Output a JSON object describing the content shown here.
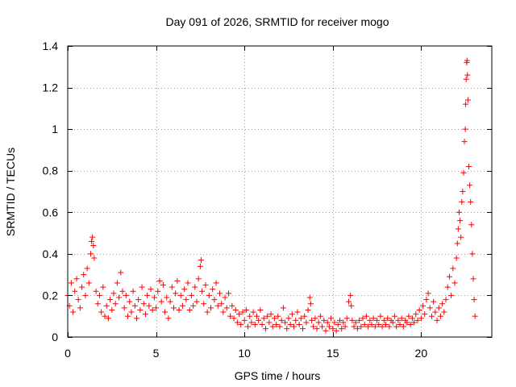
{
  "chart_data": {
    "type": "scatter",
    "title": "Day 091 of 2026, SRMTID for receiver mogo",
    "xlabel": "GPS time / hours",
    "ylabel": "SRMTID / TECUs",
    "xlim": [
      0,
      24
    ],
    "ylim": [
      0,
      1.4
    ],
    "x_ticks": [
      0,
      5,
      10,
      15,
      20
    ],
    "x_tick_labels": [
      "0",
      "5",
      "10",
      "15",
      "20"
    ],
    "y_ticks": [
      0,
      0.2,
      0.4,
      0.6,
      0.8,
      1.0,
      1.2,
      1.4
    ],
    "y_tick_labels": [
      "0",
      "0.2",
      "0.4",
      "0.6",
      "0.8",
      "1",
      "1.2",
      "1.4"
    ],
    "grid": true,
    "marker": "+",
    "marker_color": "#ff0000",
    "series": [
      {
        "name": "SRMTID",
        "points": [
          [
            0.0,
            0.2
          ],
          [
            0.1,
            0.15
          ],
          [
            0.2,
            0.26
          ],
          [
            0.3,
            0.12
          ],
          [
            0.4,
            0.22
          ],
          [
            0.5,
            0.28
          ],
          [
            0.6,
            0.18
          ],
          [
            0.7,
            0.14
          ],
          [
            0.8,
            0.24
          ],
          [
            0.9,
            0.3
          ],
          [
            1.0,
            0.2
          ],
          [
            1.1,
            0.33
          ],
          [
            1.2,
            0.26
          ],
          [
            1.3,
            0.4
          ],
          [
            1.35,
            0.46
          ],
          [
            1.4,
            0.48
          ],
          [
            1.45,
            0.44
          ],
          [
            1.5,
            0.38
          ],
          [
            1.6,
            0.22
          ],
          [
            1.7,
            0.16
          ],
          [
            1.8,
            0.2
          ],
          [
            1.9,
            0.12
          ],
          [
            2.0,
            0.24
          ],
          [
            2.1,
            0.1
          ],
          [
            2.2,
            0.15
          ],
          [
            2.3,
            0.09
          ],
          [
            2.4,
            0.18
          ],
          [
            2.5,
            0.13
          ],
          [
            2.6,
            0.21
          ],
          [
            2.7,
            0.16
          ],
          [
            2.8,
            0.26
          ],
          [
            2.9,
            0.19
          ],
          [
            3.0,
            0.31
          ],
          [
            3.1,
            0.22
          ],
          [
            3.2,
            0.14
          ],
          [
            3.3,
            0.2
          ],
          [
            3.4,
            0.1
          ],
          [
            3.5,
            0.17
          ],
          [
            3.6,
            0.12
          ],
          [
            3.7,
            0.22
          ],
          [
            3.8,
            0.15
          ],
          [
            3.9,
            0.09
          ],
          [
            4.0,
            0.18
          ],
          [
            4.1,
            0.13
          ],
          [
            4.2,
            0.24
          ],
          [
            4.3,
            0.16
          ],
          [
            4.4,
            0.11
          ],
          [
            4.5,
            0.2
          ],
          [
            4.6,
            0.15
          ],
          [
            4.7,
            0.23
          ],
          [
            4.8,
            0.13
          ],
          [
            4.9,
            0.19
          ],
          [
            5.0,
            0.14
          ],
          [
            5.1,
            0.22
          ],
          [
            5.2,
            0.27
          ],
          [
            5.3,
            0.17
          ],
          [
            5.4,
            0.25
          ],
          [
            5.5,
            0.12
          ],
          [
            5.6,
            0.19
          ],
          [
            5.7,
            0.09
          ],
          [
            5.8,
            0.17
          ],
          [
            5.9,
            0.24
          ],
          [
            6.0,
            0.14
          ],
          [
            6.1,
            0.21
          ],
          [
            6.2,
            0.27
          ],
          [
            6.3,
            0.13
          ],
          [
            6.4,
            0.2
          ],
          [
            6.5,
            0.15
          ],
          [
            6.6,
            0.23
          ],
          [
            6.7,
            0.18
          ],
          [
            6.8,
            0.26
          ],
          [
            6.9,
            0.13
          ],
          [
            7.0,
            0.2
          ],
          [
            7.1,
            0.15
          ],
          [
            7.2,
            0.24
          ],
          [
            7.3,
            0.17
          ],
          [
            7.4,
            0.28
          ],
          [
            7.5,
            0.34
          ],
          [
            7.55,
            0.37
          ],
          [
            7.6,
            0.22
          ],
          [
            7.7,
            0.16
          ],
          [
            7.8,
            0.25
          ],
          [
            7.9,
            0.12
          ],
          [
            8.0,
            0.2
          ],
          [
            8.1,
            0.14
          ],
          [
            8.2,
            0.23
          ],
          [
            8.3,
            0.18
          ],
          [
            8.4,
            0.26
          ],
          [
            8.5,
            0.15
          ],
          [
            8.6,
            0.21
          ],
          [
            8.7,
            0.16
          ],
          [
            8.8,
            0.12
          ],
          [
            8.9,
            0.19
          ],
          [
            9.0,
            0.14
          ],
          [
            9.1,
            0.21
          ],
          [
            9.2,
            0.1
          ],
          [
            9.3,
            0.15
          ],
          [
            9.4,
            0.09
          ],
          [
            9.5,
            0.13
          ],
          [
            9.6,
            0.07
          ],
          [
            9.7,
            0.11
          ],
          [
            9.8,
            0.06
          ],
          [
            9.9,
            0.12
          ],
          [
            10.0,
            0.08
          ],
          [
            10.1,
            0.13
          ],
          [
            10.2,
            0.05
          ],
          [
            10.3,
            0.1
          ],
          [
            10.4,
            0.07
          ],
          [
            10.5,
            0.12
          ],
          [
            10.6,
            0.06
          ],
          [
            10.7,
            0.1
          ],
          [
            10.8,
            0.08
          ],
          [
            10.9,
            0.13
          ],
          [
            11.0,
            0.06
          ],
          [
            11.1,
            0.09
          ],
          [
            11.2,
            0.04
          ],
          [
            11.3,
            0.1
          ],
          [
            11.4,
            0.07
          ],
          [
            11.5,
            0.11
          ],
          [
            11.6,
            0.05
          ],
          [
            11.7,
            0.09
          ],
          [
            11.8,
            0.06
          ],
          [
            11.9,
            0.1
          ],
          [
            12.0,
            0.05
          ],
          [
            12.1,
            0.08
          ],
          [
            12.2,
            0.14
          ],
          [
            12.3,
            0.07
          ],
          [
            12.4,
            0.04
          ],
          [
            12.5,
            0.09
          ],
          [
            12.6,
            0.06
          ],
          [
            12.7,
            0.11
          ],
          [
            12.8,
            0.05
          ],
          [
            12.9,
            0.08
          ],
          [
            13.0,
            0.12
          ],
          [
            13.1,
            0.06
          ],
          [
            13.2,
            0.09
          ],
          [
            13.3,
            0.04
          ],
          [
            13.4,
            0.1
          ],
          [
            13.5,
            0.07
          ],
          [
            13.6,
            0.13
          ],
          [
            13.7,
            0.19
          ],
          [
            13.75,
            0.16
          ],
          [
            13.8,
            0.08
          ],
          [
            13.9,
            0.05
          ],
          [
            14.0,
            0.09
          ],
          [
            14.1,
            0.04
          ],
          [
            14.2,
            0.07
          ],
          [
            14.3,
            0.1
          ],
          [
            14.4,
            0.05
          ],
          [
            14.5,
            0.08
          ],
          [
            14.6,
            0.03
          ],
          [
            14.7,
            0.07
          ],
          [
            14.8,
            0.05
          ],
          [
            14.9,
            0.09
          ],
          [
            15.0,
            0.04
          ],
          [
            15.1,
            0.07
          ],
          [
            15.2,
            0.03
          ],
          [
            15.3,
            0.06
          ],
          [
            15.4,
            0.08
          ],
          [
            15.5,
            0.04
          ],
          [
            15.6,
            0.07
          ],
          [
            15.7,
            0.05
          ],
          [
            15.8,
            0.09
          ],
          [
            15.9,
            0.17
          ],
          [
            16.0,
            0.2
          ],
          [
            16.05,
            0.15
          ],
          [
            16.1,
            0.08
          ],
          [
            16.2,
            0.05
          ],
          [
            16.3,
            0.07
          ],
          [
            16.4,
            0.04
          ],
          [
            16.5,
            0.08
          ],
          [
            16.6,
            0.05
          ],
          [
            16.7,
            0.09
          ],
          [
            16.8,
            0.06
          ],
          [
            16.9,
            0.1
          ],
          [
            17.0,
            0.05
          ],
          [
            17.1,
            0.08
          ],
          [
            17.2,
            0.06
          ],
          [
            17.3,
            0.09
          ],
          [
            17.4,
            0.05
          ],
          [
            17.5,
            0.08
          ],
          [
            17.6,
            0.06
          ],
          [
            17.7,
            0.1
          ],
          [
            17.8,
            0.05
          ],
          [
            17.9,
            0.08
          ],
          [
            18.0,
            0.06
          ],
          [
            18.1,
            0.09
          ],
          [
            18.2,
            0.05
          ],
          [
            18.3,
            0.08
          ],
          [
            18.4,
            0.07
          ],
          [
            18.5,
            0.1
          ],
          [
            18.6,
            0.05
          ],
          [
            18.7,
            0.08
          ],
          [
            18.8,
            0.06
          ],
          [
            18.9,
            0.09
          ],
          [
            19.0,
            0.05
          ],
          [
            19.1,
            0.08
          ],
          [
            19.2,
            0.07
          ],
          [
            19.3,
            0.1
          ],
          [
            19.4,
            0.06
          ],
          [
            19.5,
            0.09
          ],
          [
            19.6,
            0.07
          ],
          [
            19.7,
            0.11
          ],
          [
            19.8,
            0.08
          ],
          [
            19.9,
            0.13
          ],
          [
            20.0,
            0.09
          ],
          [
            20.1,
            0.15
          ],
          [
            20.2,
            0.11
          ],
          [
            20.3,
            0.18
          ],
          [
            20.4,
            0.21
          ],
          [
            20.5,
            0.14
          ],
          [
            20.6,
            0.1
          ],
          [
            20.7,
            0.17
          ],
          [
            20.8,
            0.12
          ],
          [
            20.9,
            0.08
          ],
          [
            21.0,
            0.14
          ],
          [
            21.1,
            0.1
          ],
          [
            21.2,
            0.16
          ],
          [
            21.3,
            0.12
          ],
          [
            21.4,
            0.18
          ],
          [
            21.5,
            0.24
          ],
          [
            21.6,
            0.29
          ],
          [
            21.7,
            0.2
          ],
          [
            21.8,
            0.33
          ],
          [
            21.9,
            0.26
          ],
          [
            22.0,
            0.38
          ],
          [
            22.05,
            0.45
          ],
          [
            22.1,
            0.52
          ],
          [
            22.15,
            0.6
          ],
          [
            22.2,
            0.56
          ],
          [
            22.25,
            0.48
          ],
          [
            22.3,
            0.65
          ],
          [
            22.35,
            0.7
          ],
          [
            22.4,
            0.79
          ],
          [
            22.45,
            0.94
          ],
          [
            22.5,
            1.0
          ],
          [
            22.52,
            1.12
          ],
          [
            22.55,
            1.24
          ],
          [
            22.58,
            1.32
          ],
          [
            22.6,
            1.33
          ],
          [
            22.62,
            1.26
          ],
          [
            22.65,
            1.14
          ],
          [
            22.7,
            0.82
          ],
          [
            22.75,
            0.73
          ],
          [
            22.8,
            0.65
          ],
          [
            22.85,
            0.54
          ],
          [
            22.9,
            0.4
          ],
          [
            22.95,
            0.28
          ],
          [
            23.0,
            0.18
          ],
          [
            23.05,
            0.1
          ]
        ]
      }
    ]
  }
}
